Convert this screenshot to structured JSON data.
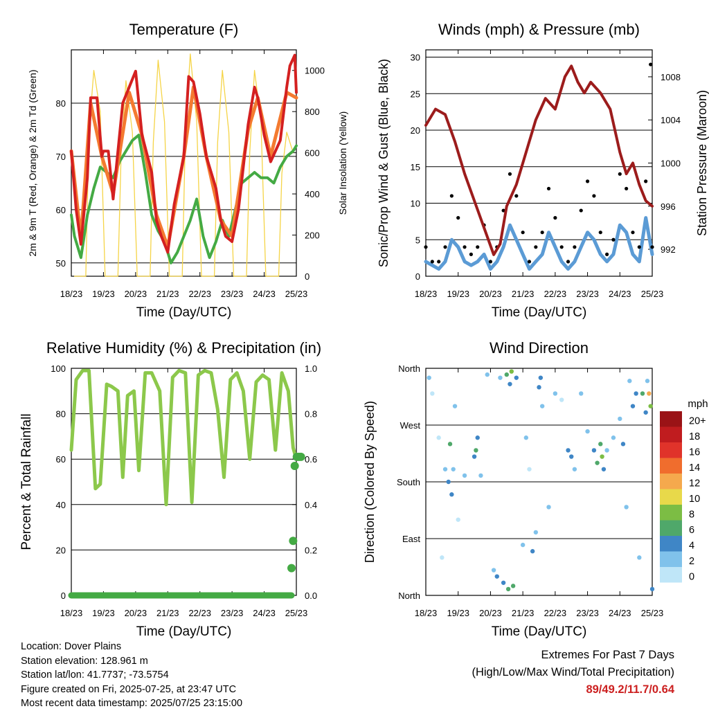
{
  "chart_data": [
    {
      "type": "line",
      "title": "Temperature (F)",
      "xlabel": "Time (Day/UTC)",
      "ylabel": "2m & 9m T (Red, Orange) & 2m Td (Green)",
      "y2label": "Solar Insolation (Yellow)",
      "x_ticks": [
        "18/23",
        "19/23",
        "20/23",
        "21/23",
        "22/23",
        "23/23",
        "24/23",
        "25/23"
      ],
      "ylim": [
        47.5,
        90
      ],
      "y_ticks": [
        50,
        60,
        70,
        80
      ],
      "y2lim": [
        0,
        1100
      ],
      "y2_ticks": [
        0,
        200,
        400,
        600,
        800,
        1000
      ],
      "grid": "horizontal",
      "series": [
        {
          "name": "2m T",
          "color": "#d42020",
          "x": [
            0,
            0.15,
            0.3,
            0.5,
            0.6,
            0.8,
            0.95,
            1,
            1.15,
            1.3,
            1.6,
            1.8,
            2,
            2.2,
            2.5,
            2.65,
            2.8,
            3,
            3.2,
            3.5,
            3.65,
            3.8,
            4,
            4.2,
            4.5,
            4.65,
            4.8,
            5,
            5.2,
            5.5,
            5.7,
            5.8,
            6,
            6.2,
            6.5,
            6.7,
            6.8,
            6.95,
            7
          ],
          "values": [
            71,
            60,
            53.5,
            66,
            81,
            81,
            70,
            71,
            71,
            62,
            80,
            83,
            86,
            74,
            67,
            58,
            55,
            52,
            61,
            70,
            85,
            84,
            78,
            70,
            64,
            58,
            55,
            54,
            60,
            76,
            83,
            81,
            74,
            69,
            73,
            83,
            87,
            89,
            82
          ]
        },
        {
          "name": "9m T",
          "color": "#f47a30",
          "x": [
            0,
            0.3,
            0.6,
            0.95,
            1.3,
            1.8,
            2.2,
            2.65,
            3,
            3.5,
            3.8,
            4.2,
            4.65,
            5,
            5.5,
            5.8,
            6.2,
            6.7,
            7
          ],
          "values": [
            71,
            54.5,
            80,
            70,
            63,
            82,
            74,
            59,
            53,
            70,
            83,
            70,
            58,
            55,
            75,
            81,
            70,
            82,
            81
          ]
        },
        {
          "name": "2m Td",
          "color": "#44aa44",
          "x": [
            0,
            0.1,
            0.3,
            0.5,
            0.7,
            0.9,
            1.1,
            1.3,
            1.5,
            1.7,
            1.9,
            2.1,
            2.3,
            2.5,
            2.7,
            2.9,
            3.1,
            3.3,
            3.5,
            3.7,
            3.9,
            4.1,
            4.3,
            4.5,
            4.7,
            4.9,
            5.1,
            5.3,
            5.5,
            5.7,
            5.9,
            6.1,
            6.3,
            6.5,
            6.7,
            6.9,
            7
          ],
          "values": [
            59,
            55,
            51,
            59,
            64,
            68,
            67,
            66,
            69,
            71,
            73,
            74,
            67,
            59,
            56,
            54,
            50,
            52,
            55,
            58,
            62,
            55,
            51,
            54,
            58,
            55,
            60,
            65,
            66,
            67,
            66,
            66,
            65,
            68,
            70,
            71,
            72
          ]
        },
        {
          "name": "Solar Insolation",
          "color": "#f5d447",
          "axis": "y2",
          "x": [
            0.1,
            0.45,
            0.55,
            0.7,
            0.9,
            1.05,
            1.45,
            1.55,
            1.7,
            1.9,
            2.05,
            2.45,
            2.55,
            2.7,
            2.9,
            3.05,
            3.45,
            3.55,
            3.7,
            3.9,
            4.05,
            4.45,
            4.55,
            4.7,
            4.9,
            5.05,
            5.45,
            5.55,
            5.7,
            5.9,
            6.05,
            6.45,
            6.55,
            6.7,
            6.9
          ],
          "values": [
            0,
            0,
            700,
            1000,
            800,
            0,
            0,
            600,
            950,
            700,
            0,
            0,
            650,
            1050,
            750,
            0,
            0,
            700,
            1080,
            750,
            0,
            0,
            650,
            1000,
            700,
            0,
            0,
            600,
            1000,
            750,
            0,
            0,
            500,
            700,
            600
          ]
        }
      ]
    },
    {
      "type": "scatter",
      "title": "Winds (mph) & Pressure (mb)",
      "xlabel": "Time (Day/UTC)",
      "ylabel": "Sonic/Prop Wind & Gust (Blue, Black)",
      "y2label": "Station Pressure (Maroon)",
      "x_ticks": [
        "18/23",
        "19/23",
        "20/23",
        "21/23",
        "22/23",
        "23/23",
        "24/23",
        "25/23"
      ],
      "ylim": [
        0,
        31
      ],
      "y_ticks": [
        0,
        5,
        10,
        15,
        20,
        25,
        30
      ],
      "y2lim": [
        989.5,
        1010.5
      ],
      "y2_ticks": [
        992,
        996,
        1000,
        1004,
        1008
      ],
      "grid": "horizontal",
      "series": [
        {
          "name": "Wind",
          "color": "#5b9bd5",
          "x": [
            0,
            0.2,
            0.4,
            0.6,
            0.8,
            1,
            1.2,
            1.4,
            1.6,
            1.8,
            2,
            2.2,
            2.4,
            2.6,
            2.8,
            3,
            3.2,
            3.4,
            3.6,
            3.8,
            4,
            4.2,
            4.4,
            4.6,
            4.8,
            5,
            5.2,
            5.4,
            5.6,
            5.8,
            6,
            6.2,
            6.4,
            6.6,
            6.8,
            7
          ],
          "values": [
            2,
            1.5,
            1,
            2,
            5,
            4,
            2,
            1.5,
            2,
            3,
            1,
            2,
            4,
            7,
            5,
            3,
            1,
            2,
            3,
            6,
            4,
            2,
            1,
            2,
            4,
            6,
            5,
            3,
            2,
            3,
            7,
            6,
            3,
            2,
            8,
            3
          ]
        },
        {
          "name": "Gust",
          "color": "#000000",
          "x": [
            0,
            0.2,
            0.4,
            0.6,
            0.8,
            1,
            1.2,
            1.4,
            1.6,
            1.8,
            2,
            2.2,
            2.4,
            2.6,
            2.8,
            3,
            3.2,
            3.4,
            3.6,
            3.8,
            4,
            4.2,
            4.4,
            4.6,
            4.8,
            5,
            5.2,
            5.4,
            5.6,
            5.8,
            6,
            6.2,
            6.4,
            6.6,
            6.8,
            6.95,
            7
          ],
          "values": [
            4,
            2,
            2,
            4,
            11,
            8,
            4,
            3,
            4,
            7,
            2,
            4,
            9,
            14,
            11,
            6,
            2,
            4,
            6,
            12,
            8,
            4,
            2,
            4,
            9,
            13,
            11,
            6,
            3,
            5,
            14,
            12,
            6,
            4,
            13,
            29,
            4
          ]
        },
        {
          "name": "Pressure",
          "color": "#9c1c1c",
          "axis": "y2",
          "x": [
            0,
            0.3,
            0.6,
            0.9,
            1.2,
            1.5,
            1.8,
            2.1,
            2.3,
            2.5,
            2.8,
            3.1,
            3.4,
            3.7,
            4,
            4.3,
            4.5,
            4.7,
            4.9,
            5.1,
            5.4,
            5.7,
            6,
            6.2,
            6.4,
            6.6,
            6.8,
            7
          ],
          "values": [
            1003.5,
            1005,
            1004.5,
            1002,
            999,
            996.5,
            994,
            991.5,
            992.5,
            996,
            998,
            1001,
            1004,
            1006,
            1005,
            1008,
            1009,
            1007.5,
            1006.5,
            1007.5,
            1006.5,
            1005,
            1001,
            999,
            1000,
            998,
            996.5,
            996
          ]
        }
      ]
    },
    {
      "type": "line",
      "title": "Relative Humidity (%) & Precipitation (in)",
      "xlabel": "Time (Day/UTC)",
      "ylabel": "Percent & Total Rainfall",
      "x_ticks": [
        "18/23",
        "19/23",
        "20/23",
        "21/23",
        "22/23",
        "23/23",
        "24/23",
        "25/23"
      ],
      "ylim": [
        0,
        100
      ],
      "y_ticks": [
        0,
        20,
        40,
        60,
        80,
        100
      ],
      "y2lim": [
        0,
        1.0
      ],
      "y2_ticks": [
        0.0,
        0.2,
        0.4,
        0.6,
        0.8,
        1.0
      ],
      "grid": "horizontal",
      "series": [
        {
          "name": "Relative Humidity",
          "color": "#8cc84b",
          "x": [
            0,
            0.15,
            0.35,
            0.55,
            0.75,
            0.9,
            1.1,
            1.25,
            1.45,
            1.6,
            1.75,
            1.95,
            2.1,
            2.3,
            2.5,
            2.75,
            2.95,
            3.15,
            3.35,
            3.55,
            3.75,
            3.95,
            4.15,
            4.35,
            4.55,
            4.75,
            4.95,
            5.15,
            5.35,
            5.55,
            5.75,
            5.95,
            6.15,
            6.35,
            6.55,
            6.75,
            6.9,
            7
          ],
          "values": [
            64,
            95,
            99,
            99,
            47,
            49,
            93,
            92,
            90,
            52,
            88,
            90,
            55,
            98,
            98,
            90,
            40,
            96,
            99,
            98,
            41,
            97,
            99,
            98,
            82,
            52,
            95,
            98,
            90,
            60,
            94,
            97,
            95,
            64,
            98,
            90,
            65,
            60
          ]
        },
        {
          "name": "Precipitation",
          "color": "#44aa44",
          "axis": "y2",
          "x": [
            0,
            0.5,
            1,
            1.5,
            2,
            2.5,
            3,
            3.5,
            4,
            4.5,
            5,
            5.5,
            6,
            6.5,
            6.85,
            6.9,
            6.95,
            7,
            7.05,
            7.1
          ],
          "values": [
            0,
            0,
            0,
            0,
            0,
            0,
            0,
            0,
            0,
            0,
            0,
            0,
            0,
            0,
            0.12,
            0.24,
            0.57,
            0.61,
            0.61,
            0.61
          ]
        }
      ]
    },
    {
      "type": "scatter",
      "title": "Wind Direction",
      "xlabel": "Time (Day/UTC)",
      "ylabel": "Direction (Colored By Speed)",
      "x_ticks": [
        "18/23",
        "19/23",
        "20/23",
        "21/23",
        "22/23",
        "23/23",
        "24/23",
        "25/23"
      ],
      "y_ticks": [
        "North",
        "East",
        "South",
        "West",
        "North"
      ],
      "ylim": [
        0,
        360
      ],
      "grid": "horizontal",
      "legend": "right",
      "legend_title": "mph",
      "legend_labels": [
        "0",
        "2",
        "4",
        "6",
        "8",
        "10",
        "12",
        "14",
        "16",
        "18",
        "20+"
      ],
      "legend_colors": [
        "#bfe6f8",
        "#80c2eb",
        "#3f86c6",
        "#4fa86a",
        "#7cbd44",
        "#e8d94a",
        "#f5a94d",
        "#f06d2d",
        "#e0332a",
        "#c01c1f",
        "#9a1316"
      ],
      "points": [
        {
          "x": 0.1,
          "dir": 345,
          "speed": 2
        },
        {
          "x": 0.2,
          "dir": 320,
          "speed": 1
        },
        {
          "x": 0.4,
          "dir": 250,
          "speed": 1
        },
        {
          "x": 0.5,
          "dir": 60,
          "speed": 1
        },
        {
          "x": 0.6,
          "dir": 200,
          "speed": 2
        },
        {
          "x": 0.7,
          "dir": 180,
          "speed": 4
        },
        {
          "x": 0.75,
          "dir": 240,
          "speed": 6
        },
        {
          "x": 0.8,
          "dir": 160,
          "speed": 4
        },
        {
          "x": 0.85,
          "dir": 200,
          "speed": 3
        },
        {
          "x": 0.9,
          "dir": 300,
          "speed": 2
        },
        {
          "x": 1.0,
          "dir": 120,
          "speed": 1
        },
        {
          "x": 1.2,
          "dir": 190,
          "speed": 3
        },
        {
          "x": 1.5,
          "dir": 220,
          "speed": 4
        },
        {
          "x": 1.55,
          "dir": 230,
          "speed": 6
        },
        {
          "x": 1.6,
          "dir": 250,
          "speed": 5
        },
        {
          "x": 1.7,
          "dir": 190,
          "speed": 3
        },
        {
          "x": 1.9,
          "dir": 350,
          "speed": 2
        },
        {
          "x": 2.1,
          "dir": 40,
          "speed": 3
        },
        {
          "x": 2.2,
          "dir": 30,
          "speed": 4
        },
        {
          "x": 2.3,
          "dir": 345,
          "speed": 2
        },
        {
          "x": 2.4,
          "dir": 20,
          "speed": 5
        },
        {
          "x": 2.5,
          "dir": 350,
          "speed": 6
        },
        {
          "x": 2.55,
          "dir": 10,
          "speed": 7
        },
        {
          "x": 2.6,
          "dir": 335,
          "speed": 5
        },
        {
          "x": 2.65,
          "dir": 355,
          "speed": 9
        },
        {
          "x": 2.7,
          "dir": 15,
          "speed": 6
        },
        {
          "x": 2.8,
          "dir": 345,
          "speed": 4
        },
        {
          "x": 3.0,
          "dir": 80,
          "speed": 2
        },
        {
          "x": 3.1,
          "dir": 250,
          "speed": 2
        },
        {
          "x": 3.2,
          "dir": 200,
          "speed": 1
        },
        {
          "x": 3.3,
          "dir": 70,
          "speed": 4
        },
        {
          "x": 3.4,
          "dir": 100,
          "speed": 3
        },
        {
          "x": 3.5,
          "dir": 330,
          "speed": 4
        },
        {
          "x": 3.55,
          "dir": 345,
          "speed": 5
        },
        {
          "x": 3.6,
          "dir": 300,
          "speed": 3
        },
        {
          "x": 3.8,
          "dir": 140,
          "speed": 2
        },
        {
          "x": 4.0,
          "dir": 320,
          "speed": 2
        },
        {
          "x": 4.2,
          "dir": 310,
          "speed": 1
        },
        {
          "x": 4.4,
          "dir": 230,
          "speed": 4
        },
        {
          "x": 4.5,
          "dir": 220,
          "speed": 5
        },
        {
          "x": 4.6,
          "dir": 200,
          "speed": 3
        },
        {
          "x": 4.8,
          "dir": 320,
          "speed": 2
        },
        {
          "x": 5.0,
          "dir": 260,
          "speed": 2
        },
        {
          "x": 5.2,
          "dir": 230,
          "speed": 4
        },
        {
          "x": 5.3,
          "dir": 210,
          "speed": 6
        },
        {
          "x": 5.4,
          "dir": 240,
          "speed": 7
        },
        {
          "x": 5.45,
          "dir": 220,
          "speed": 8
        },
        {
          "x": 5.5,
          "dir": 200,
          "speed": 4
        },
        {
          "x": 5.6,
          "dir": 230,
          "speed": 3
        },
        {
          "x": 5.8,
          "dir": 250,
          "speed": 2
        },
        {
          "x": 6.0,
          "dir": 280,
          "speed": 3
        },
        {
          "x": 6.1,
          "dir": 240,
          "speed": 4
        },
        {
          "x": 6.2,
          "dir": 140,
          "speed": 2
        },
        {
          "x": 6.3,
          "dir": 340,
          "speed": 3
        },
        {
          "x": 6.4,
          "dir": 300,
          "speed": 5
        },
        {
          "x": 6.5,
          "dir": 320,
          "speed": 4
        },
        {
          "x": 6.6,
          "dir": 60,
          "speed": 2
        },
        {
          "x": 6.7,
          "dir": 320,
          "speed": 6
        },
        {
          "x": 6.8,
          "dir": 290,
          "speed": 4
        },
        {
          "x": 6.85,
          "dir": 340,
          "speed": 3
        },
        {
          "x": 6.9,
          "dir": 320,
          "speed": 12
        },
        {
          "x": 6.95,
          "dir": 300,
          "speed": 8
        },
        {
          "x": 7.0,
          "dir": 10,
          "speed": 5
        }
      ]
    }
  ],
  "info": {
    "location": "Location: Dover Plains",
    "elevation": "Station elevation: 128.961 m",
    "latlon": "Station lat/lon: 41.7737; -73.5754",
    "created": "Figure created on Fri, 2025-07-25, at 23:47 UTC",
    "recent": "Most recent data timestamp: 2025/07/25 23:15:00"
  },
  "extremes": {
    "title": "Extremes For Past 7 Days",
    "subtitle": "(High/Low/Max Wind/Total Precipitation)",
    "values": "89/49.2/11.7/0.64"
  }
}
